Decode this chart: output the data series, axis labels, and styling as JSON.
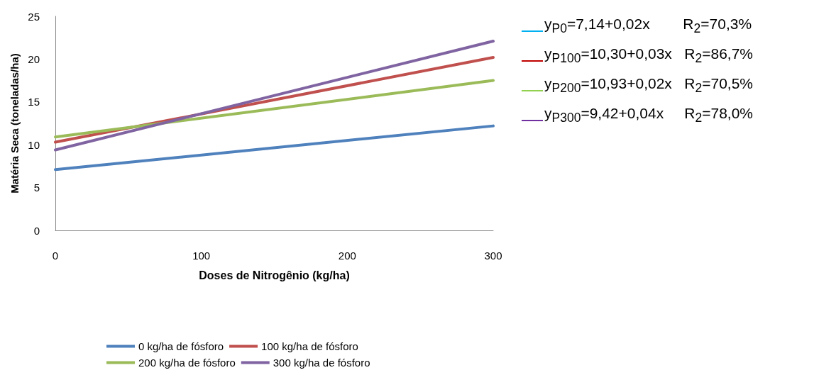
{
  "chart_data": {
    "type": "line",
    "xlabel": "Doses de Nitrogênio (kg/ha)",
    "ylabel": "Matéria Seca (toneladas/ha)",
    "x": [
      0,
      300
    ],
    "series": [
      {
        "name": "0 kg/ha de fósforo",
        "color": "#4f81bd",
        "values": [
          7.1,
          12.2
        ]
      },
      {
        "name": "100 kg/ha de fósforo",
        "color": "#c0504d",
        "values": [
          10.3,
          20.2
        ]
      },
      {
        "name": "200 kg/ha de fósforo",
        "color": "#9bbb59",
        "values": [
          10.9,
          17.5
        ]
      },
      {
        "name": "300 kg/ha de fósforo",
        "color": "#8064a2",
        "values": [
          9.4,
          22.1
        ]
      }
    ],
    "xlim": [
      0,
      300
    ],
    "xticks": [
      0,
      100,
      200,
      300
    ],
    "ylim": [
      0,
      25
    ],
    "yticks": [
      0,
      5,
      10,
      15,
      20,
      25
    ],
    "grid": false,
    "legend": "bottom",
    "marker": "none",
    "line_style": "solid",
    "annotations": [
      "y$_{P0}$=7,14+0,02x        R$_{2}$=70,3%",
      "y$_{P100}$=10,30+0,03x   R$_{2}$=86,7%",
      "y$_{P200}$=10,93+0,02x   R$_{2}$=70,5%",
      "y$_{P300}$=9,42+0,04x     R$_{2}$=78,0%"
    ]
  }
}
